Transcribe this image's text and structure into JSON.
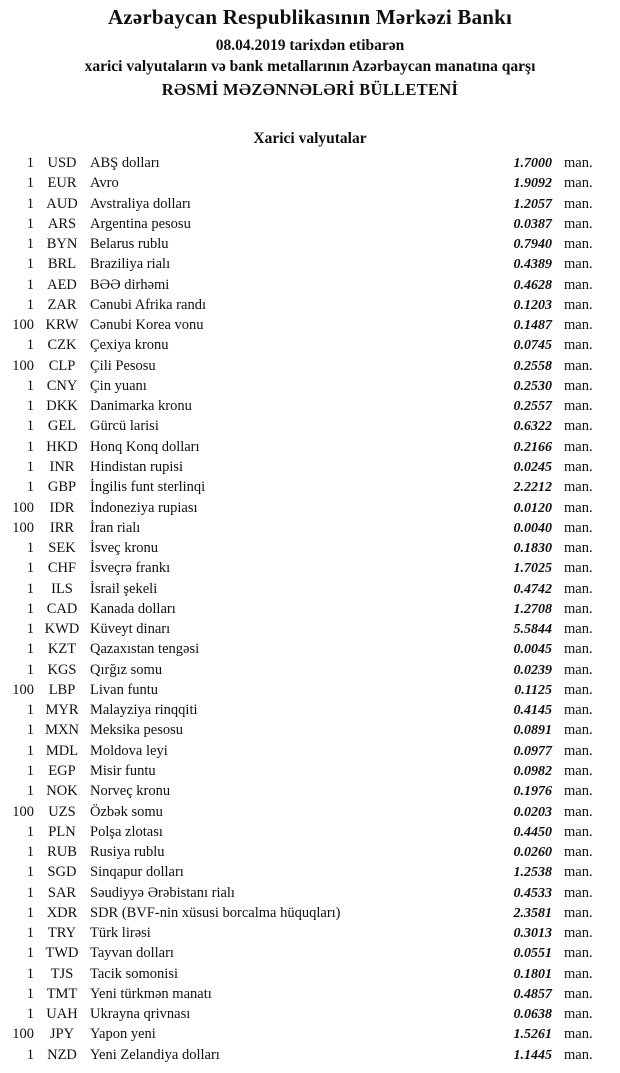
{
  "header": {
    "bank_title": "Azərbaycan Respublikasının Mərkəzi Bankı",
    "effective_date_line": "08.04.2019 tarixdən etibarən",
    "subject_line": "xarici valyutaların və bank metallarının Azərbaycan manatına qarşı",
    "bulletin_title": "RƏSMİ MƏZƏNNƏLƏRİ BÜLLETENİ"
  },
  "section": {
    "title": "Xarici valyutalar"
  },
  "unit_label": "man.",
  "rates": [
    {
      "qty": "1",
      "code": "USD",
      "name": "ABŞ dolları",
      "rate": "1.7000"
    },
    {
      "qty": "1",
      "code": "EUR",
      "name": "Avro",
      "rate": "1.9092"
    },
    {
      "qty": "1",
      "code": "AUD",
      "name": "Avstraliya dolları",
      "rate": "1.2057"
    },
    {
      "qty": "1",
      "code": "ARS",
      "name": "Argentina pesosu",
      "rate": "0.0387"
    },
    {
      "qty": "1",
      "code": "BYN",
      "name": "Belarus rublu",
      "rate": "0.7940"
    },
    {
      "qty": "1",
      "code": "BRL",
      "name": "Braziliya rialı",
      "rate": "0.4389"
    },
    {
      "qty": "1",
      "code": "AED",
      "name": "BƏƏ dirhəmi",
      "rate": "0.4628"
    },
    {
      "qty": "1",
      "code": "ZAR",
      "name": "Cənubi Afrika randı",
      "rate": "0.1203"
    },
    {
      "qty": "100",
      "code": "KRW",
      "name": "Cənubi Korea vonu",
      "rate": "0.1487"
    },
    {
      "qty": "1",
      "code": "CZK",
      "name": "Çexiya kronu",
      "rate": "0.0745"
    },
    {
      "qty": "100",
      "code": "CLP",
      "name": "Çili Pesosu",
      "rate": "0.2558"
    },
    {
      "qty": "1",
      "code": "CNY",
      "name": "Çin yuanı",
      "rate": "0.2530"
    },
    {
      "qty": "1",
      "code": "DKK",
      "name": "Danimarka kronu",
      "rate": "0.2557"
    },
    {
      "qty": "1",
      "code": "GEL",
      "name": "Gürcü larisi",
      "rate": "0.6322"
    },
    {
      "qty": "1",
      "code": "HKD",
      "name": "Honq Konq dolları",
      "rate": "0.2166"
    },
    {
      "qty": "1",
      "code": "INR",
      "name": "Hindistan rupisi",
      "rate": "0.0245"
    },
    {
      "qty": "1",
      "code": "GBP",
      "name": "İngilis funt sterlinqi",
      "rate": "2.2212"
    },
    {
      "qty": "100",
      "code": "IDR",
      "name": "İndoneziya rupiası",
      "rate": "0.0120"
    },
    {
      "qty": "100",
      "code": "IRR",
      "name": "İran rialı",
      "rate": "0.0040"
    },
    {
      "qty": "1",
      "code": "SEK",
      "name": "İsveç kronu",
      "rate": "0.1830"
    },
    {
      "qty": "1",
      "code": "CHF",
      "name": "İsveçrə frankı",
      "rate": "1.7025"
    },
    {
      "qty": "1",
      "code": "ILS",
      "name": "İsrail şekeli",
      "rate": "0.4742"
    },
    {
      "qty": "1",
      "code": "CAD",
      "name": "Kanada dolları",
      "rate": "1.2708"
    },
    {
      "qty": "1",
      "code": "KWD",
      "name": "Küveyt dinarı",
      "rate": "5.5844"
    },
    {
      "qty": "1",
      "code": "KZT",
      "name": "Qazaxıstan tengəsi",
      "rate": "0.0045"
    },
    {
      "qty": "1",
      "code": "KGS",
      "name": "Qırğız somu",
      "rate": "0.0239"
    },
    {
      "qty": "100",
      "code": "LBP",
      "name": "Livan funtu",
      "rate": "0.1125"
    },
    {
      "qty": "1",
      "code": "MYR",
      "name": "Malayziya rinqqiti",
      "rate": "0.4145"
    },
    {
      "qty": "1",
      "code": "MXN",
      "name": "Meksika pesosu",
      "rate": "0.0891"
    },
    {
      "qty": "1",
      "code": "MDL",
      "name": "Moldova leyi",
      "rate": "0.0977"
    },
    {
      "qty": "1",
      "code": "EGP",
      "name": "Misir funtu",
      "rate": "0.0982"
    },
    {
      "qty": "1",
      "code": "NOK",
      "name": "Norveç kronu",
      "rate": "0.1976"
    },
    {
      "qty": "100",
      "code": "UZS",
      "name": "Özbək somu",
      "rate": "0.0203"
    },
    {
      "qty": "1",
      "code": "PLN",
      "name": "Polşa zlotası",
      "rate": "0.4450"
    },
    {
      "qty": "1",
      "code": "RUB",
      "name": "Rusiya rublu",
      "rate": "0.0260"
    },
    {
      "qty": "1",
      "code": "SGD",
      "name": "Sinqapur dolları",
      "rate": "1.2538"
    },
    {
      "qty": "1",
      "code": "SAR",
      "name": "Səudiyyə Ərəbistanı rialı",
      "rate": "0.4533"
    },
    {
      "qty": "1",
      "code": "XDR",
      "name": "SDR (BVF-nin xüsusi borcalma hüquqları)",
      "rate": "2.3581"
    },
    {
      "qty": "1",
      "code": "TRY",
      "name": "Türk lirəsi",
      "rate": "0.3013"
    },
    {
      "qty": "1",
      "code": "TWD",
      "name": "Tayvan dolları",
      "rate": "0.0551"
    },
    {
      "qty": "1",
      "code": "TJS",
      "name": "Tacik somonisi",
      "rate": "0.1801"
    },
    {
      "qty": "1",
      "code": "TMT",
      "name": "Yeni türkmən manatı",
      "rate": "0.4857"
    },
    {
      "qty": "1",
      "code": "UAH",
      "name": "Ukrayna qrivnası",
      "rate": "0.0638"
    },
    {
      "qty": "100",
      "code": "JPY",
      "name": "Yapon yeni",
      "rate": "1.5261"
    },
    {
      "qty": "1",
      "code": "NZD",
      "name": "Yeni Zelandiya dolları",
      "rate": "1.1445"
    }
  ]
}
